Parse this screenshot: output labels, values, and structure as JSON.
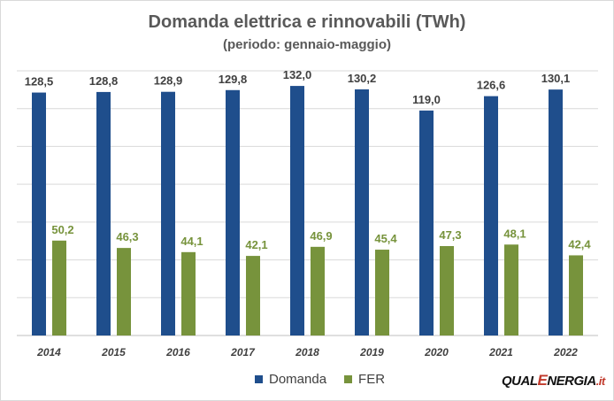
{
  "title": "Domanda elettrica e rinnovabili (TWh)",
  "subtitle": "(periodo: gennaio-maggio)",
  "brand": {
    "part1": "QUAL",
    "part2": "E",
    "part3": "NERGIA",
    "part4": ".it"
  },
  "colors": {
    "domanda": "#1f4e8c",
    "fer": "#77933c",
    "grid": "#d9d9d9",
    "label_domanda": "#404040",
    "label_fer": "#77933c"
  },
  "chart_data": {
    "type": "bar",
    "title": "Domanda elettrica e rinnovabili (TWh)",
    "subtitle": "(periodo: gennaio-maggio)",
    "categories": [
      "2014",
      "2015",
      "2016",
      "2017",
      "2018",
      "2019",
      "2020",
      "2021",
      "2022"
    ],
    "series": [
      {
        "name": "Domanda",
        "values": [
          128.5,
          128.8,
          128.9,
          129.8,
          132.0,
          130.2,
          119.0,
          126.6,
          130.1
        ],
        "labels": [
          "128,5",
          "128,8",
          "128,9",
          "129,8",
          "132,0",
          "130,2",
          "119,0",
          "126,6",
          "130,1"
        ]
      },
      {
        "name": "FER",
        "values": [
          50.2,
          46.3,
          44.1,
          42.1,
          46.9,
          45.4,
          47.3,
          48.1,
          42.4
        ],
        "labels": [
          "50,2",
          "46,3",
          "44,1",
          "42,1",
          "46,9",
          "45,4",
          "47,3",
          "48,1",
          "42,4"
        ]
      }
    ],
    "ylim": [
      0,
      140
    ],
    "grid": true,
    "legend": "bottom"
  }
}
